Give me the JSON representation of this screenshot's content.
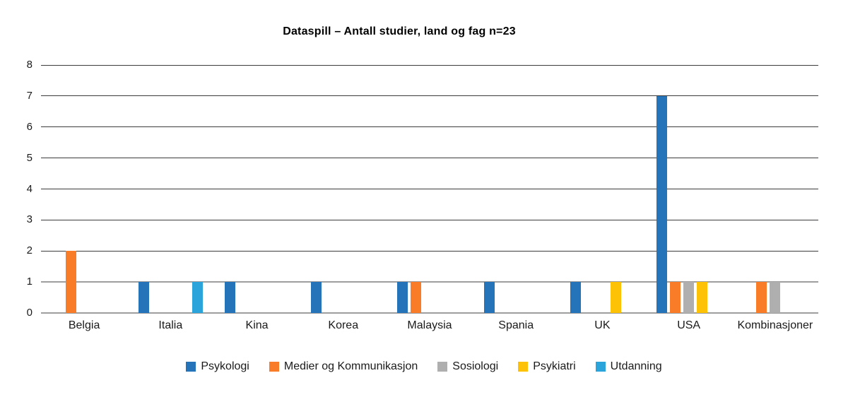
{
  "title": "Dataspill – Antall studier, land og fag n=23",
  "chart_data": {
    "type": "bar",
    "title": "Dataspill – Antall studier, land og fag n=23",
    "categories": [
      "Belgia",
      "Italia",
      "Kina",
      "Korea",
      "Malaysia",
      "Spania",
      "UK",
      "USA",
      "Kombinasjoner"
    ],
    "series": [
      {
        "name": "Psykologi",
        "color": "#2573b9",
        "values": [
          0,
          1,
          1,
          1,
          1,
          1,
          1,
          7,
          0
        ]
      },
      {
        "name": "Medier og Kommunikasjon",
        "color": "#f97d28",
        "values": [
          2,
          0,
          0,
          0,
          1,
          0,
          0,
          1,
          1
        ]
      },
      {
        "name": "Sosiologi",
        "color": "#afafaf",
        "values": [
          0,
          0,
          0,
          0,
          0,
          0,
          0,
          1,
          1
        ]
      },
      {
        "name": "Psykiatri",
        "color": "#fdc105",
        "values": [
          0,
          0,
          0,
          0,
          0,
          0,
          1,
          1,
          0
        ]
      },
      {
        "name": "Utdanning",
        "color": "#2ba4dc",
        "values": [
          0,
          1,
          0,
          0,
          0,
          0,
          0,
          0,
          0
        ]
      }
    ],
    "xlabel": "",
    "ylabel": "",
    "ylim": [
      0,
      8
    ],
    "yticks": [
      0,
      1,
      2,
      3,
      4,
      5,
      6,
      7,
      8
    ],
    "grid": true,
    "legend_position": "bottom",
    "gridline_color_main": "#3b3b3e",
    "gridline_color_base": "#9e9e9e"
  }
}
